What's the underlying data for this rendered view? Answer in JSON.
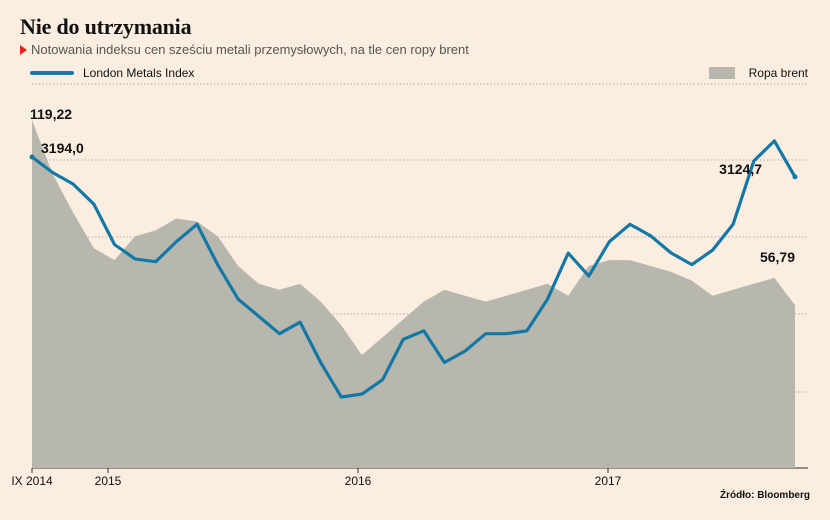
{
  "title": "Nie do utrzymania",
  "subtitle": "Notowania indeksu cen sześciu metali przemysłowych, na tle cen ropy brent",
  "source": "Źródło: Bloomberg",
  "colors": {
    "lmi": "#1378a6",
    "brent": "#b8b7ad",
    "background": "#fbeee0",
    "accent": "#e2231a"
  },
  "chart_data": {
    "type": "area",
    "x_ticks": [
      "IX 2014",
      "2015",
      "2016",
      "2017"
    ],
    "series": [
      {
        "name": "London Metals Index",
        "type": "line",
        "start_label": "3194,0",
        "end_label": "3124,7",
        "x": [
          "2014-09",
          "2014-10",
          "2014-11",
          "2014-12",
          "2015-01",
          "2015-02",
          "2015-03",
          "2015-04",
          "2015-05",
          "2015-06",
          "2015-07",
          "2015-08",
          "2015-09",
          "2015-10",
          "2015-11",
          "2015-12",
          "2016-01",
          "2016-02",
          "2016-03",
          "2016-04",
          "2016-05",
          "2016-06",
          "2016-07",
          "2016-08",
          "2016-09",
          "2016-10",
          "2016-11",
          "2016-12",
          "2017-01",
          "2017-02",
          "2017-03",
          "2017-04",
          "2017-05",
          "2017-06",
          "2017-07",
          "2017-08",
          "2017-09",
          "2017-10"
        ],
        "values": [
          3194.0,
          3140,
          3100,
          3030,
          2890,
          2840,
          2830,
          2900,
          2960,
          2820,
          2700,
          2640,
          2580,
          2620,
          2480,
          2360,
          2370,
          2420,
          2560,
          2590,
          2480,
          2520,
          2580,
          2580,
          2590,
          2700,
          2860,
          2780,
          2900,
          2960,
          2920,
          2860,
          2820,
          2870,
          2960,
          3180,
          3250,
          3124.7
        ]
      },
      {
        "name": "Ropa brent",
        "type": "area",
        "start_label": "119,22",
        "end_label": "56,79",
        "x": [
          "2014-09",
          "2014-10",
          "2014-11",
          "2014-12",
          "2015-01",
          "2015-02",
          "2015-03",
          "2015-04",
          "2015-05",
          "2015-06",
          "2015-07",
          "2015-08",
          "2015-09",
          "2015-10",
          "2015-11",
          "2015-12",
          "2016-01",
          "2016-02",
          "2016-03",
          "2016-04",
          "2016-05",
          "2016-06",
          "2016-07",
          "2016-08",
          "2016-09",
          "2016-10",
          "2016-11",
          "2016-12",
          "2017-01",
          "2017-02",
          "2017-03",
          "2017-04",
          "2017-05",
          "2017-06",
          "2017-07",
          "2017-08",
          "2017-09",
          "2017-10"
        ],
        "values": [
          119.22,
          101,
          88,
          76,
          72,
          80,
          82,
          86,
          85,
          80,
          70,
          64,
          62,
          64,
          58,
          50,
          40,
          46,
          52,
          58,
          62,
          60,
          58,
          60,
          62,
          64,
          60,
          70,
          72,
          72,
          70,
          68,
          65,
          60,
          62,
          64,
          66,
          56.79
        ]
      }
    ],
    "grid": true
  }
}
